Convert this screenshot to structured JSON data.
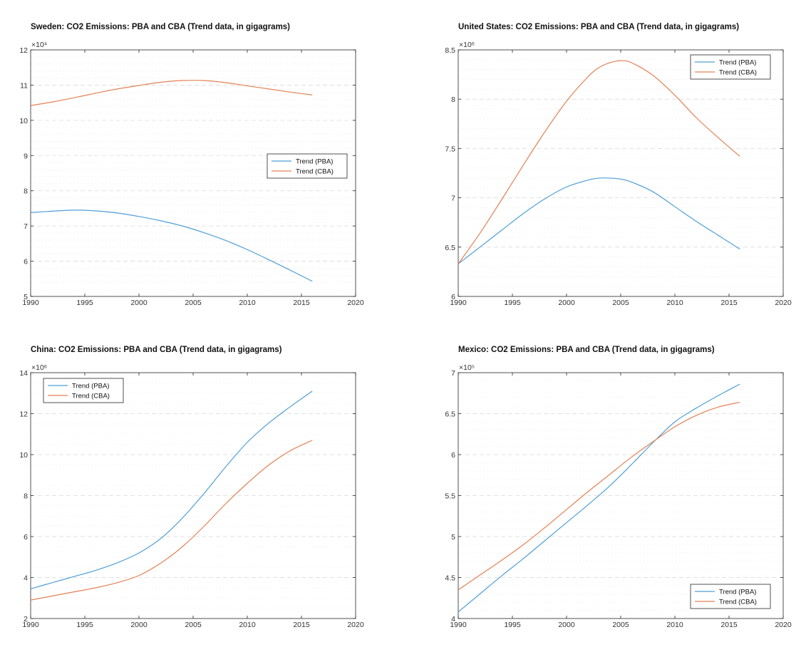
{
  "chart_data": [
    {
      "type": "line",
      "title": "Sweden: CO2 Emissions: PBA and CBA (Trend data, in gigagrams)",
      "multiplier": "×10⁴",
      "xlim": [
        1990,
        2020
      ],
      "ylim": [
        5,
        12
      ],
      "x_ticks": [
        1990,
        1995,
        2000,
        2005,
        2010,
        2015,
        2020
      ],
      "y_ticks": [
        5,
        6,
        7,
        8,
        9,
        10,
        11,
        12
      ],
      "y_minor_step": 0.2,
      "legend_position": "right-middle",
      "x": [
        1990,
        1992,
        1994,
        1996,
        1998,
        2000,
        2002,
        2004,
        2006,
        2008,
        2010,
        2012,
        2014,
        2016
      ],
      "series": [
        {
          "name": "Trend (PBA)",
          "color": "#4f9fd6",
          "values": [
            7.38,
            7.42,
            7.45,
            7.43,
            7.37,
            7.27,
            7.15,
            7.0,
            6.81,
            6.59,
            6.33,
            6.04,
            5.74,
            5.43
          ]
        },
        {
          "name": "Trend (CBA)",
          "color": "#e38154",
          "values": [
            10.42,
            10.52,
            10.64,
            10.77,
            10.89,
            10.99,
            11.08,
            11.13,
            11.13,
            11.07,
            10.98,
            10.89,
            10.8,
            10.72
          ]
        }
      ]
    },
    {
      "type": "line",
      "title": "United States: CO2 Emissions: PBA and CBA (Trend data, in gigagrams)",
      "multiplier": "×10⁶",
      "xlim": [
        1990,
        2020
      ],
      "ylim": [
        6,
        8.5
      ],
      "x_ticks": [
        1990,
        1995,
        2000,
        2005,
        2010,
        2015,
        2020
      ],
      "y_ticks": [
        6,
        6.5,
        7,
        7.5,
        8,
        8.5
      ],
      "y_minor_step": 0.1,
      "legend_position": "top-right",
      "x": [
        1990,
        1992,
        1994,
        1996,
        1998,
        2000,
        2002,
        2003,
        2004,
        2005,
        2006,
        2008,
        2010,
        2012,
        2014,
        2016
      ],
      "series": [
        {
          "name": "Trend (PBA)",
          "color": "#4f9fd6",
          "values": [
            6.33,
            6.5,
            6.67,
            6.84,
            6.99,
            7.11,
            7.18,
            7.2,
            7.2,
            7.19,
            7.16,
            7.06,
            6.91,
            6.76,
            6.62,
            6.48
          ]
        },
        {
          "name": "Trend (CBA)",
          "color": "#e38154",
          "values": [
            6.33,
            6.64,
            6.98,
            7.33,
            7.67,
            7.98,
            8.23,
            8.32,
            8.37,
            8.39,
            8.37,
            8.24,
            8.04,
            7.81,
            7.61,
            7.42
          ]
        }
      ]
    },
    {
      "type": "line",
      "title": "China: CO2 Emissions: PBA and CBA (Trend data, in gigagrams)",
      "multiplier": "×10⁶",
      "xlim": [
        1990,
        2020
      ],
      "ylim": [
        2,
        14
      ],
      "x_ticks": [
        1990,
        1995,
        2000,
        2005,
        2010,
        2015,
        2020
      ],
      "y_ticks": [
        2,
        4,
        6,
        8,
        10,
        12,
        14
      ],
      "y_minor_step": 0.5,
      "legend_position": "top-left",
      "x": [
        1990,
        1992,
        1994,
        1996,
        1998,
        2000,
        2002,
        2004,
        2006,
        2008,
        2010,
        2012,
        2014,
        2016
      ],
      "series": [
        {
          "name": "Trend (PBA)",
          "color": "#4f9fd6",
          "values": [
            3.45,
            3.75,
            4.05,
            4.35,
            4.72,
            5.2,
            5.9,
            6.9,
            8.1,
            9.4,
            10.6,
            11.55,
            12.35,
            13.1
          ]
        },
        {
          "name": "Trend (CBA)",
          "color": "#e38154",
          "values": [
            2.9,
            3.1,
            3.3,
            3.5,
            3.75,
            4.1,
            4.7,
            5.5,
            6.5,
            7.6,
            8.6,
            9.5,
            10.2,
            10.7
          ]
        }
      ]
    },
    {
      "type": "line",
      "title": "Mexico: CO2 Emissions: PBA and CBA (Trend data, in gigagrams)",
      "multiplier": "×10⁵",
      "xlim": [
        1990,
        2020
      ],
      "ylim": [
        4,
        7
      ],
      "x_ticks": [
        1990,
        1995,
        2000,
        2005,
        2010,
        2015,
        2020
      ],
      "y_ticks": [
        4,
        4.5,
        5,
        5.5,
        6,
        6.5,
        7
      ],
      "y_minor_step": 0.1,
      "legend_position": "bottom-right",
      "x": [
        1990,
        1992,
        1994,
        1996,
        1998,
        2000,
        2002,
        2004,
        2006,
        2008,
        2010,
        2012,
        2014,
        2016
      ],
      "series": [
        {
          "name": "Trend (PBA)",
          "color": "#4f9fd6",
          "values": [
            4.08,
            4.3,
            4.52,
            4.73,
            4.95,
            5.17,
            5.39,
            5.62,
            5.88,
            6.15,
            6.4,
            6.57,
            6.72,
            6.86
          ]
        },
        {
          "name": "Trend (CBA)",
          "color": "#e38154",
          "values": [
            4.35,
            4.53,
            4.71,
            4.9,
            5.11,
            5.33,
            5.55,
            5.76,
            5.97,
            6.16,
            6.34,
            6.48,
            6.58,
            6.64
          ]
        }
      ]
    }
  ]
}
